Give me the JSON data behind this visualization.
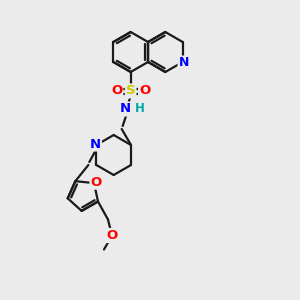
{
  "background_color": "#ebebeb",
  "bond_color": "#1a1a1a",
  "atom_colors": {
    "N": "#0000ff",
    "O": "#ff0000",
    "S": "#cccc00",
    "H": "#00aaaa",
    "C": "#1a1a1a"
  },
  "figsize": [
    3.0,
    3.0
  ],
  "dpi": 100
}
